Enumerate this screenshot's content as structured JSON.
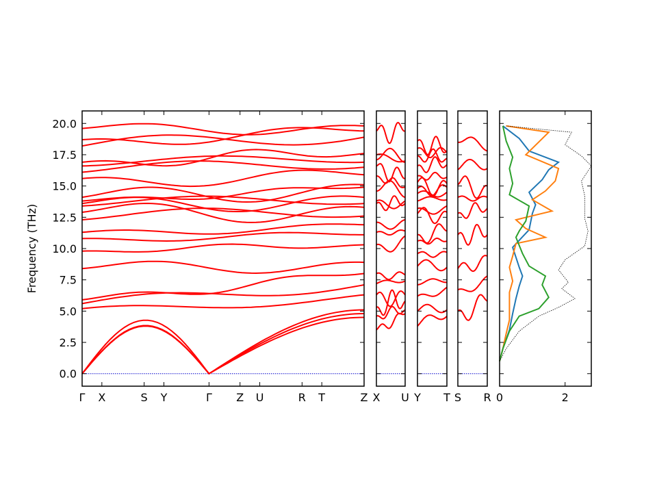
{
  "chart_data": {
    "type": "line",
    "ylabel": "Frequency (THz)",
    "ylim": [
      -1.0,
      21.0
    ],
    "yticks": [
      "0.0",
      "2.5",
      "5.0",
      "7.5",
      "10.0",
      "12.5",
      "15.0",
      "17.5",
      "20.0"
    ],
    "ytick_values": [
      0,
      2.5,
      5,
      7.5,
      10,
      12.5,
      15,
      17.5,
      20
    ],
    "zero_line": 0,
    "segments": [
      {
        "labels": [
          "Γ",
          "X",
          "S",
          "Y",
          "Γ",
          "Z",
          "U",
          "R",
          "T",
          "Z"
        ],
        "label_pos": [
          0,
          0.07,
          0.22,
          0.29,
          0.45,
          0.56,
          0.63,
          0.78,
          0.85,
          1.0
        ]
      },
      {
        "labels": [
          "X",
          "U"
        ],
        "label_pos": [
          0,
          1.0
        ]
      },
      {
        "labels": [
          "Y",
          "T"
        ],
        "label_pos": [
          0,
          1.0
        ]
      },
      {
        "labels": [
          "S",
          "R"
        ],
        "label_pos": [
          0,
          1.0
        ]
      }
    ],
    "band_endpoints": [
      {
        "segment": 0,
        "name": "Γ-X-S-Y-Γ-Z-U-R-T-Z",
        "start": [
          0,
          0,
          0,
          5.2,
          5.6,
          5.9,
          8.4,
          9.8,
          10.8,
          11.3,
          12.3,
          12.9,
          13.4,
          13.6,
          13.8,
          14.1,
          15.6,
          16.1,
          16.6,
          16.9,
          18.2,
          18.7,
          19.6
        ],
        "end": [
          4.5,
          4.5,
          5.0,
          6.3,
          7.1,
          8.0,
          8.9,
          10.3,
          11.1,
          11.9,
          12.6,
          13.3,
          13.6,
          14.1,
          14.9,
          15.1,
          15.9,
          16.5,
          16.9,
          17.6,
          18.9,
          19.4,
          19.8
        ]
      },
      {
        "segment": 1,
        "name": "X-U",
        "start": [
          3.5,
          4.6,
          5.3,
          6.3,
          7.2,
          8.0,
          10.3,
          11.3,
          12.1,
          13.6,
          13.8,
          14.6,
          15.8,
          16.6,
          17.1,
          17.5,
          19.4
        ],
        "end": [
          4.8,
          5.1,
          5.8,
          6.3,
          7.4,
          7.9,
          11.0,
          11.4,
          12.3,
          13.6,
          13.8,
          14.1,
          14.9,
          15.6,
          16.9,
          17.0,
          19.4
        ]
      },
      {
        "segment": 2,
        "name": "Y-T",
        "start": [
          3.8,
          5.0,
          6.2,
          7.1,
          8.6,
          9.6,
          10.6,
          11.1,
          12.8,
          13.2,
          13.8,
          14.4,
          14.8,
          15.3,
          15.8,
          16.6,
          17.4,
          18.0,
          18.6
        ],
        "end": [
          4.6,
          5.1,
          6.9,
          7.3,
          8.5,
          9.7,
          10.6,
          11.4,
          12.9,
          13.4,
          13.9,
          14.5,
          14.9,
          15.2,
          15.7,
          16.7,
          17.2,
          17.7,
          17.8
        ]
      },
      {
        "segment": 3,
        "name": "S-R",
        "start": [
          5.0,
          6.7,
          8.4,
          11.1,
          12.8,
          14.1,
          15.1,
          16.3,
          18.5
        ],
        "end": [
          5.8,
          7.8,
          9.4,
          11.1,
          13.2,
          14.1,
          15.0,
          16.4,
          17.8
        ]
      }
    ],
    "dos": {
      "xlim": [
        0,
        2.8
      ],
      "xticks": [
        "0",
        "2"
      ],
      "xtick_values": [
        0,
        2
      ],
      "series": [
        {
          "color": "#1f77b4",
          "points": [
            [
              0,
              1
            ],
            [
              0.1,
              2
            ],
            [
              0.3,
              3.5
            ],
            [
              0.4,
              4.8
            ],
            [
              0.5,
              6
            ],
            [
              0.6,
              7
            ],
            [
              0.7,
              7.8
            ],
            [
              0.6,
              8.5
            ],
            [
              0.5,
              9.3
            ],
            [
              0.4,
              10.1
            ],
            [
              0.9,
              11.5
            ],
            [
              1.0,
              12.8
            ],
            [
              1.1,
              13.5
            ],
            [
              0.9,
              14.5
            ],
            [
              1.3,
              15.5
            ],
            [
              1.5,
              16.3
            ],
            [
              1.8,
              16.9
            ],
            [
              0.9,
              17.8
            ],
            [
              0.6,
              18.8
            ],
            [
              0.1,
              19.8
            ]
          ]
        },
        {
          "color": "#ff7f0e",
          "points": [
            [
              0,
              1
            ],
            [
              0.1,
              2
            ],
            [
              0.2,
              3.2
            ],
            [
              0.3,
              4.3
            ],
            [
              0.3,
              5.4
            ],
            [
              0.3,
              6.5
            ],
            [
              0.4,
              7.4
            ],
            [
              0.3,
              8.5
            ],
            [
              0.4,
              9.4
            ],
            [
              0.5,
              10.4
            ],
            [
              1.4,
              10.9
            ],
            [
              0.8,
              11.6
            ],
            [
              0.5,
              12.3
            ],
            [
              1.6,
              13
            ],
            [
              1.0,
              13.9
            ],
            [
              1.4,
              14.6
            ],
            [
              1.7,
              15.4
            ],
            [
              1.8,
              16.4
            ],
            [
              0.8,
              17.5
            ],
            [
              1.5,
              19.3
            ],
            [
              0.2,
              19.8
            ]
          ]
        },
        {
          "color": "#2ca02c",
          "points": [
            [
              0,
              1
            ],
            [
              0.1,
              2
            ],
            [
              0.3,
              3.4
            ],
            [
              0.6,
              4.6
            ],
            [
              1.2,
              5.2
            ],
            [
              1.5,
              6.1
            ],
            [
              1.3,
              7.1
            ],
            [
              1.4,
              7.8
            ],
            [
              0.9,
              8.6
            ],
            [
              0.7,
              9.6
            ],
            [
              0.5,
              10.9
            ],
            [
              0.6,
              11.4
            ],
            [
              0.8,
              12.2
            ],
            [
              0.9,
              13.4
            ],
            [
              0.3,
              14.3
            ],
            [
              0.4,
              15.2
            ],
            [
              0.3,
              16.4
            ],
            [
              0.4,
              17.3
            ],
            [
              0.2,
              18.6
            ],
            [
              0.1,
              19.8
            ]
          ]
        },
        {
          "color": "#000000",
          "total": true,
          "points": [
            [
              0,
              1
            ],
            [
              0.2,
              2
            ],
            [
              0.6,
              3.4
            ],
            [
              1.2,
              4.6
            ],
            [
              1.8,
              5.3
            ],
            [
              2.3,
              6.0
            ],
            [
              1.9,
              6.8
            ],
            [
              2.1,
              7.3
            ],
            [
              1.8,
              8.3
            ],
            [
              2.0,
              9.1
            ],
            [
              2.6,
              10.2
            ],
            [
              2.7,
              11.4
            ],
            [
              2.6,
              12.4
            ],
            [
              2.6,
              13.3
            ],
            [
              2.6,
              14.2
            ],
            [
              2.5,
              15.4
            ],
            [
              2.8,
              16.6
            ],
            [
              2.5,
              17.4
            ],
            [
              2.0,
              18.3
            ],
            [
              2.2,
              19.3
            ],
            [
              0.2,
              19.8
            ]
          ]
        }
      ]
    }
  }
}
